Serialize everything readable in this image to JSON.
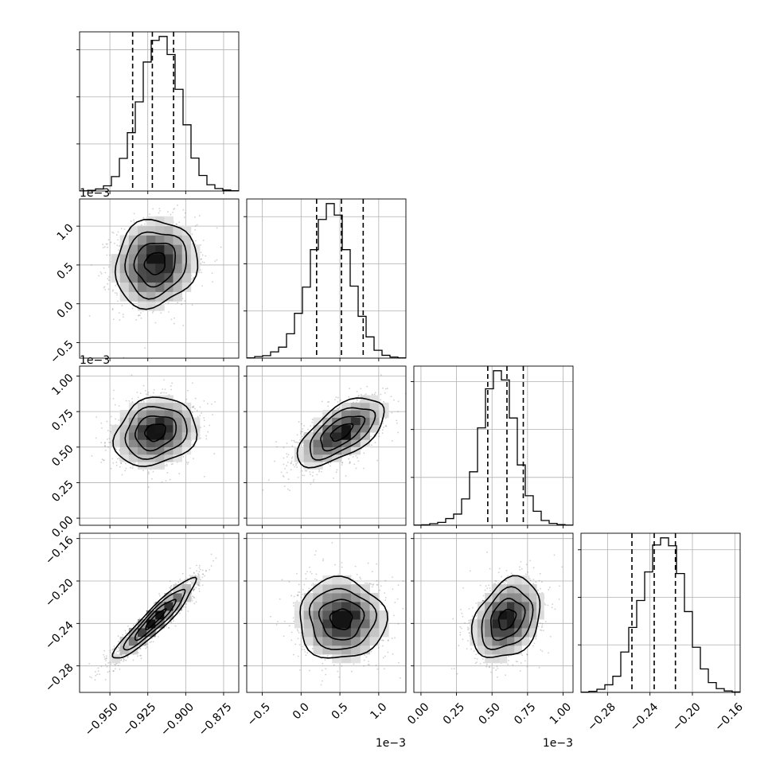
{
  "chart_data": {
    "type": "scatter",
    "subtype": "corner-plot",
    "title": "",
    "colors": {
      "line": "#000000",
      "grid": "#b0b0b0",
      "points": "#777777",
      "frame": "#000000"
    },
    "grid": true,
    "quantiles": [
      0.16,
      0.5,
      0.84
    ],
    "parameters": [
      {
        "index": 0,
        "range": [
          -0.97,
          -0.865
        ],
        "ticks": [
          -0.95,
          -0.925,
          -0.9,
          -0.875
        ],
        "tick_labels": [
          "−0.950",
          "−0.925",
          "−0.900",
          "−0.875"
        ],
        "offset_label": "",
        "mean": -0.92,
        "sigma": 0.0135,
        "quantile_values": [
          -0.935,
          -0.922,
          -0.908
        ],
        "hist_bins": 20,
        "histogram": [
          1,
          4,
          13,
          33,
          92,
          208,
          372,
          568,
          822,
          960,
          985,
          870,
          648,
          422,
          210,
          99,
          40,
          16,
          6,
          2
        ]
      },
      {
        "index": 1,
        "range": [
          -0.0007,
          0.00135
        ],
        "ticks": [
          -0.0005,
          0.0,
          0.0005,
          0.001
        ],
        "tick_labels": [
          "−0.5",
          "0.0",
          "0.5",
          "1.0"
        ],
        "offset_label": "1e−3",
        "mean": 0.00052,
        "sigma": 0.00028,
        "quantile_values": [
          0.0002,
          0.00052,
          0.0008
        ],
        "hist_bins": 20,
        "histogram": [
          2,
          10,
          16,
          40,
          70,
          155,
          285,
          452,
          690,
          882,
          983,
          910,
          690,
          458,
          266,
          135,
          50,
          18,
          7,
          2
        ]
      },
      {
        "index": 2,
        "range": [
          -5e-05,
          0.00107
        ],
        "ticks": [
          0.0,
          0.00025,
          0.0005,
          0.00075,
          0.001
        ],
        "tick_labels": [
          "0.00",
          "0.25",
          "0.50",
          "0.75",
          "1.00"
        ],
        "offset_label": "1e−3",
        "mean": 0.000605,
        "sigma": 0.00012,
        "quantile_values": [
          0.00047,
          0.000605,
          0.00072
        ],
        "hist_bins": 20,
        "histogram": [
          1,
          3,
          10,
          18,
          42,
          70,
          165,
          335,
          610,
          855,
          968,
          910,
          672,
          378,
          185,
          88,
          30,
          12,
          4,
          1
        ]
      },
      {
        "index": 3,
        "range": [
          -0.305,
          -0.155
        ],
        "ticks": [
          -0.28,
          -0.24,
          -0.2,
          -0.16
        ],
        "tick_labels": [
          "−0.28",
          "−0.24",
          "−0.20",
          "−0.16"
        ],
        "offset_label": "",
        "mean": -0.236,
        "sigma": 0.019,
        "quantile_values": [
          -0.257,
          -0.236,
          -0.216
        ],
        "hist_bins": 20,
        "histogram": [
          2,
          7,
          20,
          48,
          102,
          255,
          410,
          580,
          760,
          930,
          975,
          925,
          750,
          510,
          285,
          148,
          62,
          24,
          9,
          3
        ]
      }
    ],
    "correlations": [
      {
        "pair": [
          0,
          1
        ],
        "rho": 0.1
      },
      {
        "pair": [
          0,
          2
        ],
        "rho": 0.18
      },
      {
        "pair": [
          1,
          2
        ],
        "rho": 0.62
      },
      {
        "pair": [
          0,
          3
        ],
        "rho": 0.93
      },
      {
        "pair": [
          1,
          3
        ],
        "rho": -0.02
      },
      {
        "pair": [
          2,
          3
        ],
        "rho": 0.3
      }
    ],
    "contour_levels_sigma": [
      0.5,
      1.0,
      1.5,
      2.0
    ],
    "n_samples": 5000
  }
}
